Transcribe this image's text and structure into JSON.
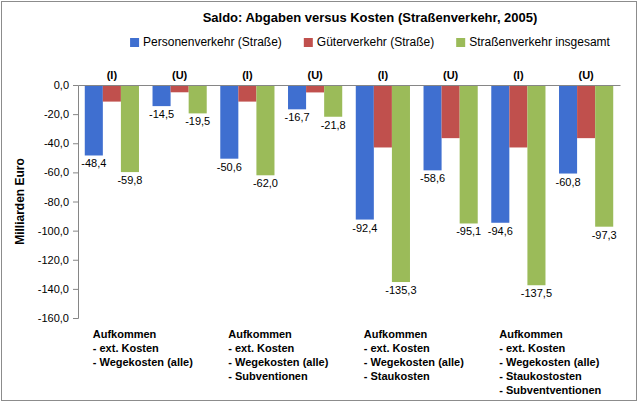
{
  "chart_data": {
    "type": "bar",
    "title": "Saldo: Abgaben versus Kosten (Straßenverkehr, 2005)",
    "y_label": "Milliarden Euro",
    "categories": [
      "(I)",
      "(U)",
      "(I)",
      "(U)",
      "(I)",
      "(U)",
      "(I)",
      "(U)"
    ],
    "series": [
      {
        "name": "Personenverkehr (Straße)",
        "color": "#3f6fd0",
        "values": [
          -48.4,
          -14.5,
          -50.6,
          -16.7,
          -92.4,
          -58.6,
          -94.6,
          -60.8
        ],
        "value_labels": [
          "-48,4",
          "-14,5",
          "-50,6",
          "-16,7",
          "-92,4",
          "-58,6",
          "-94,6",
          "-60,8"
        ]
      },
      {
        "name": "Güterverkehr (Straße)",
        "color": "#c0504d",
        "values": [
          -11.4,
          -5.0,
          -11.4,
          -5.1,
          -42.9,
          -36.5,
          -42.9,
          -36.5
        ]
      },
      {
        "name": "Straßenverkehr insgesamt",
        "color": "#9bbb59",
        "values": [
          -59.8,
          -19.5,
          -62.0,
          -21.8,
          -135.3,
          -95.1,
          -137.5,
          -97.3
        ],
        "value_labels": [
          "-59,8",
          "-19,5",
          "-62,0",
          "-21,8",
          "-135,3",
          "-95,1",
          "-137,5",
          "-97,3"
        ]
      }
    ],
    "ylim": [
      -160,
      0
    ],
    "yticks": [
      {
        "value": 0,
        "label": "0,0"
      },
      {
        "value": -20,
        "label": "-20,0"
      },
      {
        "value": -40,
        "label": "-40,0"
      },
      {
        "value": -60,
        "label": "-60,0"
      },
      {
        "value": -80,
        "label": "-80,0"
      },
      {
        "value": -100,
        "label": "-100,0"
      },
      {
        "value": -120,
        "label": "-120,0"
      },
      {
        "value": -140,
        "label": "-140,0"
      },
      {
        "value": -160,
        "label": "-160,0"
      }
    ],
    "grid": false,
    "legend": "top",
    "data_labels": true,
    "annotations": [
      [
        "Aufkommen",
        "- ext. Kosten",
        "- Wegekosten (alle)"
      ],
      [
        "Aufkommen",
        "- ext. Kosten",
        "- Wegekosten (alle)",
        "- Subventionen"
      ],
      [
        "Aufkommen",
        "- ext. Kosten",
        "- Wegekosten (alle)",
        "- Staukosten"
      ],
      [
        "Aufkommen",
        "- ext. Kosten",
        "- Wegekosten (alle)",
        "- Staukostosten",
        "- Subventventionen"
      ]
    ]
  }
}
